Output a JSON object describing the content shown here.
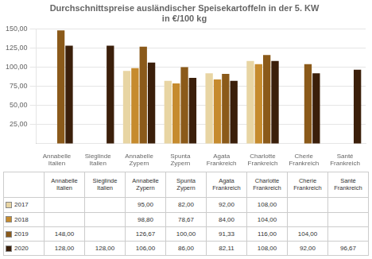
{
  "chart_data": {
    "type": "bar",
    "title": "Durchschnittspreise ausländischer Speisekartoffeln in der 5. KW\nin €/100 kg",
    "categories": [
      "Annabelle\nItalien",
      "Sieglinde\nItalien",
      "Annabelle\nZypern",
      "Spunta\nZypern",
      "Agata\nFrankreich",
      "Charlotte\nFrankreich",
      "Cherie\nFrankreich",
      "Santé\nFrankreich"
    ],
    "series": [
      {
        "name": "2017",
        "color": "#E8D5A3",
        "values": [
          null,
          null,
          95.0,
          82.0,
          92.0,
          108.0,
          null,
          null
        ],
        "value_labels": [
          null,
          null,
          "95,00",
          "82,00",
          "92,00",
          "108,00",
          null,
          null
        ]
      },
      {
        "name": "2018",
        "color": "#C68B2E",
        "values": [
          null,
          null,
          98.8,
          78.67,
          84.0,
          104.0,
          null,
          null
        ],
        "value_labels": [
          null,
          null,
          "98,80",
          "78,67",
          "84,00",
          "104,00",
          null,
          null
        ]
      },
      {
        "name": "2019",
        "color": "#8B5A1A",
        "values": [
          148.0,
          null,
          126.67,
          100.0,
          91.33,
          116.0,
          104.0,
          null
        ],
        "value_labels": [
          "148,00",
          null,
          "126,67",
          "100,00",
          "91,33",
          "116,00",
          "104,00",
          null
        ]
      },
      {
        "name": "2020",
        "color": "#3B1F0A",
        "values": [
          128.0,
          128.0,
          106.0,
          86.0,
          82.11,
          108.0,
          92.0,
          96.67
        ],
        "value_labels": [
          "128,00",
          "128,00",
          "106,00",
          "86,00",
          "82,11",
          "108,00",
          "92,00",
          "96,67"
        ]
      }
    ],
    "ylim": [
      0,
      150
    ],
    "yticks": [
      {
        "value": 25,
        "label": "25,00"
      },
      {
        "value": 50,
        "label": "50,00"
      },
      {
        "value": 75,
        "label": "75,00"
      },
      {
        "value": 100,
        "label": "100,00"
      },
      {
        "value": 125,
        "label": "125,00"
      },
      {
        "value": 150,
        "label": "150,00"
      }
    ],
    "grid": true
  }
}
